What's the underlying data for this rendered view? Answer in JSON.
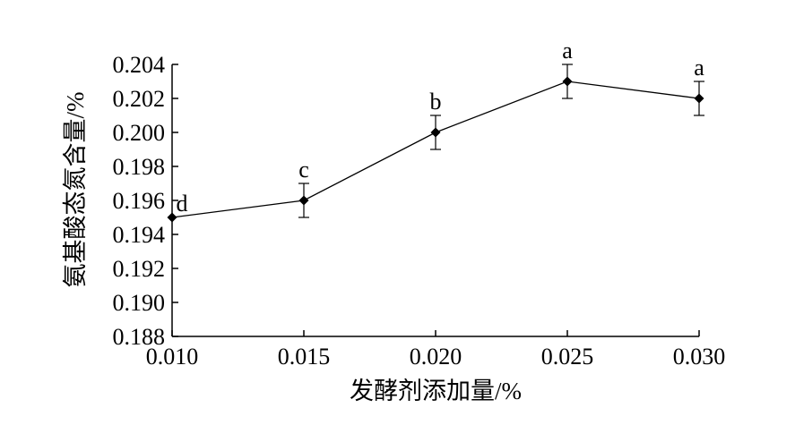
{
  "chart_data": {
    "type": "line",
    "title": "",
    "xlabel": "发酵剂添加量/%",
    "ylabel": "氨基酸态氮含量/%",
    "x": [
      0.01,
      0.015,
      0.02,
      0.025,
      0.03
    ],
    "x_tick_labels": [
      "0.010",
      "0.015",
      "0.020",
      "0.025",
      "0.030"
    ],
    "xlim": [
      0.01,
      0.03
    ],
    "ylim": [
      0.188,
      0.204
    ],
    "y_ticks": [
      0.188,
      0.19,
      0.192,
      0.194,
      0.196,
      0.198,
      0.2,
      0.202,
      0.204
    ],
    "y_tick_labels": [
      "0.188",
      "0.190",
      "0.192",
      "0.194",
      "0.196",
      "0.198",
      "0.200",
      "0.202",
      "0.204"
    ],
    "series": [
      {
        "values": [
          0.195,
          0.196,
          0.2,
          0.203,
          0.202
        ],
        "errors": [
          0.0,
          0.001,
          0.001,
          0.001,
          0.001
        ],
        "significance_labels": [
          "d",
          "c",
          "b",
          "a",
          "a"
        ],
        "color": "#000000",
        "marker": "diamond"
      }
    ],
    "grid": false,
    "legend": "none"
  }
}
